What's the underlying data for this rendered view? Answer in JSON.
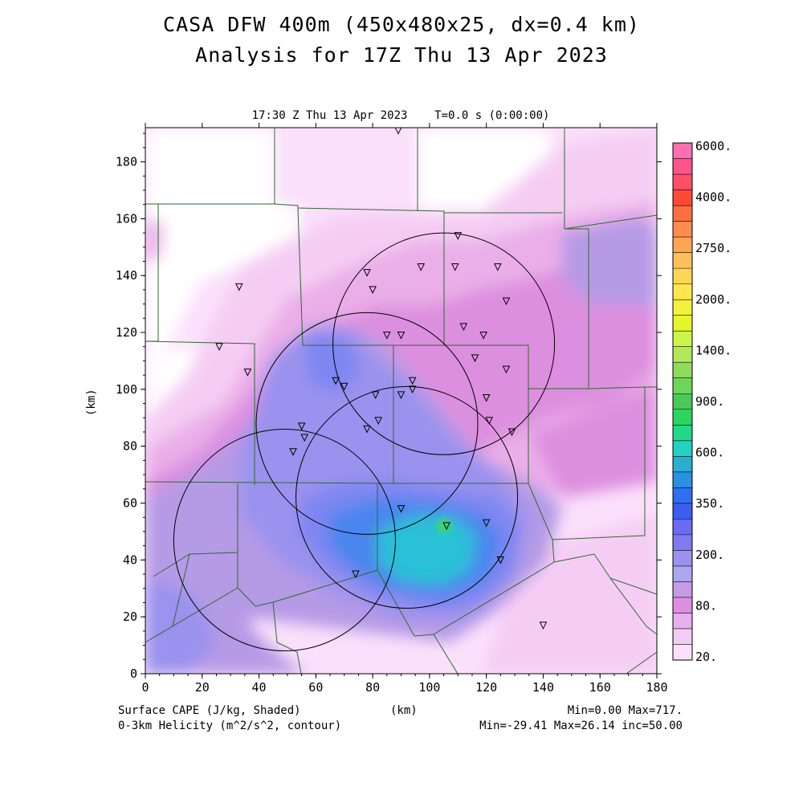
{
  "title_line1": "CASA DFW 400m (450x480x25, dx=0.4 km)",
  "title_line2": "Analysis for 17Z Thu 13 Apr 2023",
  "subtitle": "17:30 Z Thu 13 Apr 2023    T=0.0 s (0:00:00)",
  "x_axis_label": "(km)",
  "y_axis_label": "(km)",
  "x_ticks": [
    "0",
    "20",
    "40",
    "60",
    "80",
    "100",
    "120",
    "140",
    "160",
    "180"
  ],
  "y_ticks": [
    "0",
    "20",
    "40",
    "60",
    "80",
    "100",
    "120",
    "140",
    "160",
    "180"
  ],
  "footer_left_1": "Surface CAPE (J/kg, Shaded)",
  "footer_left_2": "0-3km Helicity (m^2/s^2, contour)",
  "footer_right_1": "Min=0.00 Max=717.",
  "footer_right_2": "Min=-29.41 Max=26.14 inc=50.00",
  "colorbar": {
    "labels": [
      "6000.",
      "4000.",
      "2750.",
      "2000.",
      "1400.",
      "900.",
      "600.",
      "350.",
      "200.",
      "80.",
      "20."
    ],
    "colors": [
      "#ff6fb0",
      "#ff5588",
      "#ff4f66",
      "#ff4a3a",
      "#ff6e40",
      "#ff8c4f",
      "#ffa450",
      "#ffbf5a",
      "#ffd558",
      "#ffe64f",
      "#f2f23c",
      "#e4f52a",
      "#cdf44a",
      "#b0e85a",
      "#8edc5a",
      "#6ed45a",
      "#4ac85a",
      "#2ed460",
      "#22d88a",
      "#22d0c4",
      "#2aaed0",
      "#2a90e0",
      "#2f6ff0",
      "#3c5ef0",
      "#6a6af2",
      "#7f7af0",
      "#9b92f0",
      "#aaa6ef",
      "#c79ae6",
      "#de8ee0",
      "#e6b0ee",
      "#f2ccf5",
      "#fbe0fb"
    ]
  },
  "map": {
    "x_range_km": [
      0,
      180
    ],
    "y_range_km": [
      0,
      192
    ],
    "colors": {
      "bg": "#fbe0fb",
      "pale": "#f5cdf4",
      "pink": "#eaaee8",
      "magenta": "#dd8fdf",
      "lavender": "#b59ae6",
      "periwinkle": "#9a92ee",
      "blue": "#7e86f2",
      "bright_blue": "#4a86ee",
      "cyan": "#2cc0d6",
      "green": "#3ad96a",
      "white": "#ffffff",
      "county": "#2f6a2f",
      "ring": "#000000"
    },
    "radar_rings": [
      {
        "cx_km": 49,
        "cy_km": 47,
        "r_km": 39
      },
      {
        "cx_km": 78,
        "cy_km": 88,
        "r_km": 39
      },
      {
        "cx_km": 92,
        "cy_km": 62,
        "r_km": 39
      },
      {
        "cx_km": 105,
        "cy_km": 116,
        "r_km": 39
      }
    ],
    "stations_km": [
      [
        89,
        191
      ],
      [
        110,
        154
      ],
      [
        109,
        143
      ],
      [
        97,
        143
      ],
      [
        124,
        143
      ],
      [
        78,
        141
      ],
      [
        80,
        135
      ],
      [
        33,
        136
      ],
      [
        127,
        131
      ],
      [
        112,
        122
      ],
      [
        119,
        119
      ],
      [
        85,
        119
      ],
      [
        90,
        119
      ],
      [
        26,
        115
      ],
      [
        116,
        111
      ],
      [
        127,
        107
      ],
      [
        36,
        106
      ],
      [
        67,
        103
      ],
      [
        70,
        101
      ],
      [
        94,
        103
      ],
      [
        81,
        98
      ],
      [
        90,
        98
      ],
      [
        94,
        100
      ],
      [
        120,
        97
      ],
      [
        121,
        89
      ],
      [
        82,
        89
      ],
      [
        78,
        86
      ],
      [
        55,
        87
      ],
      [
        56,
        83
      ],
      [
        129,
        85
      ],
      [
        52,
        78
      ],
      [
        90,
        58
      ],
      [
        106,
        52
      ],
      [
        120,
        53
      ],
      [
        125,
        40
      ],
      [
        74,
        35
      ],
      [
        140,
        17
      ]
    ]
  }
}
